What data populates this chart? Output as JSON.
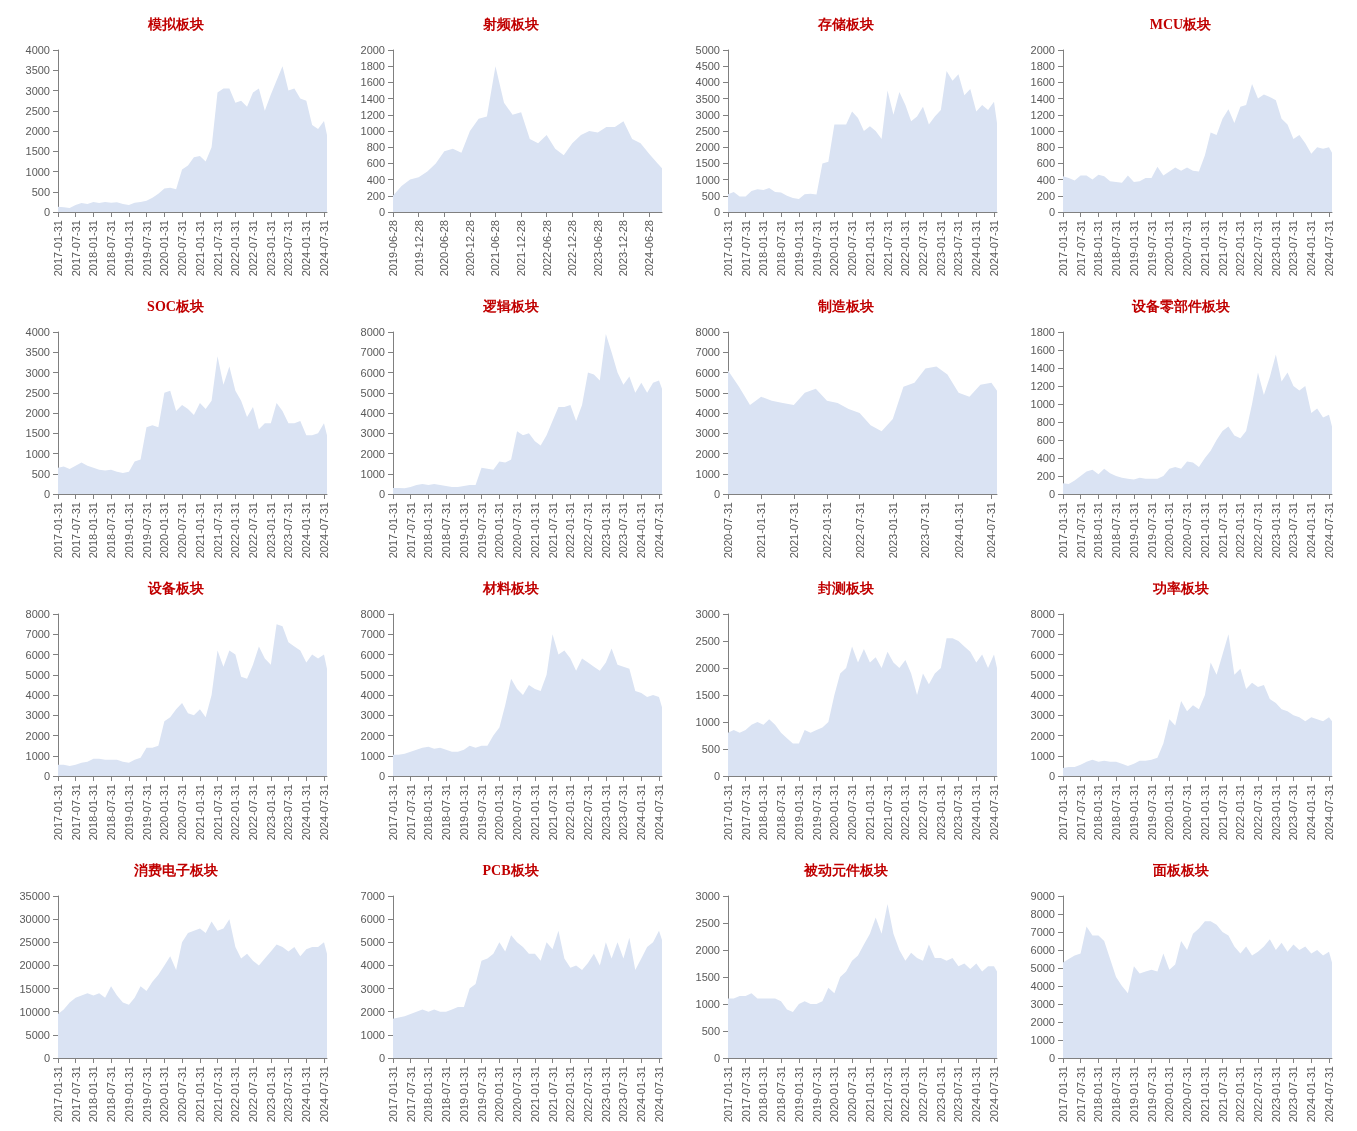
{
  "chart_data": [
    {
      "type": "area",
      "title": "模拟板块",
      "color": "#dae3f3",
      "xlim": [
        "2017-01-31",
        "2024-08-31"
      ],
      "xticks": [
        "2017-01-31",
        "2017-07-31",
        "2018-01-31",
        "2018-07-31",
        "2019-01-31",
        "2019-07-31",
        "2020-01-31",
        "2020-07-31",
        "2021-01-31",
        "2021-07-31",
        "2022-01-31",
        "2022-07-31",
        "2023-01-31",
        "2023-07-31",
        "2024-01-31",
        "2024-07-31"
      ],
      "ylim": [
        0,
        4000
      ],
      "yticks": [
        0,
        500,
        1000,
        1500,
        2000,
        2500,
        3000,
        3500,
        4000
      ],
      "x": [
        "2017-01-31",
        "2017-03-31",
        "2017-05-31",
        "2017-07-31",
        "2017-09-30",
        "2017-11-30",
        "2018-01-31",
        "2018-03-31",
        "2018-05-31",
        "2018-07-31",
        "2018-09-30",
        "2018-11-30",
        "2019-01-31",
        "2019-03-31",
        "2019-05-31",
        "2019-07-31",
        "2019-09-30",
        "2019-11-30",
        "2020-01-31",
        "2020-03-31",
        "2020-05-31",
        "2020-07-31",
        "2020-09-30",
        "2020-11-30",
        "2021-01-31",
        "2021-03-31",
        "2021-05-31",
        "2021-07-31",
        "2021-09-30",
        "2021-11-30",
        "2022-01-31",
        "2022-03-31",
        "2022-05-31",
        "2022-07-31",
        "2022-09-30",
        "2022-11-30",
        "2023-01-31",
        "2023-03-31",
        "2023-05-31",
        "2023-07-31",
        "2023-09-30",
        "2023-11-30",
        "2024-01-31",
        "2024-03-31",
        "2024-05-31",
        "2024-07-31",
        "2024-08-31"
      ],
      "values": [
        130,
        120,
        100,
        170,
        220,
        200,
        250,
        220,
        250,
        230,
        240,
        200,
        170,
        230,
        250,
        280,
        350,
        450,
        580,
        600,
        560,
        1050,
        1150,
        1350,
        1380,
        1250,
        1600,
        2950,
        3050,
        3050,
        2700,
        2750,
        2600,
        2950,
        3050,
        2500,
        2900,
        3250,
        3600,
        3000,
        3050,
        2800,
        2750,
        2150,
        2050,
        2250,
        1900
      ]
    },
    {
      "type": "area",
      "title": "射频板块",
      "color": "#dae3f3",
      "xlim": [
        "2019-06-28",
        "2024-09-28"
      ],
      "xticks": [
        "2019-06-28",
        "2019-12-28",
        "2020-06-28",
        "2020-12-28",
        "2021-06-28",
        "2021-12-28",
        "2022-06-28",
        "2022-12-28",
        "2023-06-28",
        "2023-12-28",
        "2024-06-28"
      ],
      "ylim": [
        0,
        2000
      ],
      "yticks": [
        0,
        200,
        400,
        600,
        800,
        1000,
        1200,
        1400,
        1600,
        1800,
        2000
      ],
      "x": [
        "2019-06-28",
        "2019-08-28",
        "2019-10-28",
        "2019-12-28",
        "2020-02-28",
        "2020-04-28",
        "2020-06-28",
        "2020-08-28",
        "2020-10-28",
        "2020-12-28",
        "2021-02-28",
        "2021-04-28",
        "2021-06-28",
        "2021-08-28",
        "2021-10-28",
        "2021-12-28",
        "2022-02-28",
        "2022-04-28",
        "2022-06-28",
        "2022-08-28",
        "2022-10-28",
        "2022-12-28",
        "2023-02-28",
        "2023-04-28",
        "2023-06-28",
        "2023-08-28",
        "2023-10-28",
        "2023-12-28",
        "2024-02-28",
        "2024-04-28",
        "2024-06-28",
        "2024-08-28",
        "2024-09-28"
      ],
      "values": [
        200,
        320,
        400,
        430,
        500,
        600,
        750,
        780,
        730,
        1000,
        1150,
        1180,
        1800,
        1350,
        1200,
        1230,
        900,
        850,
        950,
        780,
        700,
        850,
        950,
        1000,
        980,
        1050,
        1050,
        1120,
        900,
        850,
        720,
        600,
        540
      ]
    },
    {
      "type": "area",
      "title": "存储板块",
      "color": "#dae3f3",
      "xlim": [
        "2017-01-31",
        "2024-08-31"
      ],
      "xticks": [
        "2017-01-31",
        "2017-07-31",
        "2018-01-31",
        "2018-07-31",
        "2019-01-31",
        "2019-07-31",
        "2020-01-31",
        "2020-07-31",
        "2021-01-31",
        "2021-07-31",
        "2022-01-31",
        "2022-07-31",
        "2023-01-31",
        "2023-07-31",
        "2024-01-31",
        "2024-07-31"
      ],
      "ylim": [
        0,
        5000
      ],
      "yticks": [
        0,
        500,
        1000,
        1500,
        2000,
        2500,
        3000,
        3500,
        4000,
        4500,
        5000
      ],
      "x": [
        "2017-01-31",
        "2017-03-31",
        "2017-05-31",
        "2017-07-31",
        "2017-09-30",
        "2017-11-30",
        "2018-01-31",
        "2018-03-31",
        "2018-05-31",
        "2018-07-31",
        "2018-09-30",
        "2018-11-30",
        "2019-01-31",
        "2019-03-31",
        "2019-05-31",
        "2019-07-31",
        "2019-09-30",
        "2019-11-30",
        "2020-01-31",
        "2020-03-31",
        "2020-05-31",
        "2020-07-31",
        "2020-09-30",
        "2020-11-30",
        "2021-01-31",
        "2021-03-31",
        "2021-05-31",
        "2021-07-31",
        "2021-09-30",
        "2021-11-30",
        "2022-01-31",
        "2022-03-31",
        "2022-05-31",
        "2022-07-31",
        "2022-09-30",
        "2022-11-30",
        "2023-01-31",
        "2023-03-31",
        "2023-05-31",
        "2023-07-31",
        "2023-09-30",
        "2023-11-30",
        "2024-01-31",
        "2024-03-31",
        "2024-05-31",
        "2024-07-31",
        "2024-08-31"
      ],
      "values": [
        550,
        620,
        480,
        480,
        650,
        700,
        680,
        740,
        620,
        600,
        500,
        430,
        400,
        550,
        560,
        540,
        1500,
        1550,
        2700,
        2700,
        2700,
        3100,
        2900,
        2500,
        2650,
        2500,
        2250,
        3750,
        3000,
        3700,
        3300,
        2800,
        2950,
        3250,
        2700,
        2950,
        3150,
        4350,
        4050,
        4250,
        3600,
        3800,
        3100,
        3300,
        3150,
        3400,
        2750
      ]
    },
    {
      "type": "area",
      "title": "MCU板块",
      "color": "#dae3f3",
      "xlim": [
        "2017-01-31",
        "2024-08-31"
      ],
      "xticks": [
        "2017-01-31",
        "2017-07-31",
        "2018-01-31",
        "2018-07-31",
        "2019-01-31",
        "2019-07-31",
        "2020-01-31",
        "2020-07-31",
        "2021-01-31",
        "2021-07-31",
        "2022-01-31",
        "2022-07-31",
        "2023-01-31",
        "2023-07-31",
        "2024-01-31",
        "2024-07-31"
      ],
      "ylim": [
        0,
        2000
      ],
      "yticks": [
        0,
        200,
        400,
        600,
        800,
        1000,
        1200,
        1400,
        1600,
        1800,
        2000
      ],
      "x": [
        "2017-01-31",
        "2017-03-31",
        "2017-05-31",
        "2017-07-31",
        "2017-09-30",
        "2017-11-30",
        "2018-01-31",
        "2018-03-31",
        "2018-05-31",
        "2018-07-31",
        "2018-09-30",
        "2018-11-30",
        "2019-01-31",
        "2019-03-31",
        "2019-05-31",
        "2019-07-31",
        "2019-09-30",
        "2019-11-30",
        "2020-01-31",
        "2020-03-31",
        "2020-05-31",
        "2020-07-31",
        "2020-09-30",
        "2020-11-30",
        "2021-01-31",
        "2021-03-31",
        "2021-05-31",
        "2021-07-31",
        "2021-09-30",
        "2021-11-30",
        "2022-01-31",
        "2022-03-31",
        "2022-05-31",
        "2022-07-31",
        "2022-09-30",
        "2022-11-30",
        "2023-01-31",
        "2023-03-31",
        "2023-05-31",
        "2023-07-31",
        "2023-09-30",
        "2023-11-30",
        "2024-01-31",
        "2024-03-31",
        "2024-05-31",
        "2024-07-31",
        "2024-08-31"
      ],
      "values": [
        440,
        420,
        390,
        450,
        450,
        400,
        460,
        440,
        380,
        370,
        360,
        450,
        370,
        380,
        420,
        420,
        560,
        450,
        500,
        550,
        510,
        550,
        510,
        500,
        700,
        980,
        950,
        1150,
        1270,
        1100,
        1300,
        1320,
        1580,
        1400,
        1450,
        1420,
        1380,
        1150,
        1080,
        900,
        950,
        850,
        720,
        800,
        780,
        800,
        730
      ]
    },
    {
      "type": "area",
      "title": "SOC板块",
      "color": "#dae3f3",
      "xlim": [
        "2017-01-31",
        "2024-08-31"
      ],
      "xticks": [
        "2017-01-31",
        "2017-07-31",
        "2018-01-31",
        "2018-07-31",
        "2019-01-31",
        "2019-07-31",
        "2020-01-31",
        "2020-07-31",
        "2021-01-31",
        "2021-07-31",
        "2022-01-31",
        "2022-07-31",
        "2023-01-31",
        "2023-07-31",
        "2024-01-31",
        "2024-07-31"
      ],
      "ylim": [
        0,
        4000
      ],
      "yticks": [
        0,
        500,
        1000,
        1500,
        2000,
        2500,
        3000,
        3500,
        4000
      ],
      "x": [
        "2017-01-31",
        "2017-03-31",
        "2017-05-31",
        "2017-07-31",
        "2017-09-30",
        "2017-11-30",
        "2018-01-31",
        "2018-03-31",
        "2018-05-31",
        "2018-07-31",
        "2018-09-30",
        "2018-11-30",
        "2019-01-31",
        "2019-03-31",
        "2019-05-31",
        "2019-07-31",
        "2019-09-30",
        "2019-11-30",
        "2020-01-31",
        "2020-03-31",
        "2020-05-31",
        "2020-07-31",
        "2020-09-30",
        "2020-11-30",
        "2021-01-31",
        "2021-03-31",
        "2021-05-31",
        "2021-07-31",
        "2021-09-30",
        "2021-11-30",
        "2022-01-31",
        "2022-03-31",
        "2022-05-31",
        "2022-07-31",
        "2022-09-30",
        "2022-11-30",
        "2023-01-31",
        "2023-03-31",
        "2023-05-31",
        "2023-07-31",
        "2023-09-30",
        "2023-11-30",
        "2024-01-31",
        "2024-03-31",
        "2024-05-31",
        "2024-07-31",
        "2024-08-31"
      ],
      "values": [
        650,
        680,
        620,
        700,
        780,
        700,
        650,
        600,
        580,
        600,
        550,
        520,
        550,
        800,
        850,
        1650,
        1700,
        1650,
        2500,
        2550,
        2050,
        2200,
        2100,
        1950,
        2250,
        2100,
        2300,
        3400,
        2700,
        3150,
        2550,
        2300,
        1900,
        2150,
        1600,
        1750,
        1750,
        2250,
        2050,
        1750,
        1750,
        1800,
        1450,
        1450,
        1500,
        1750,
        1450
      ]
    },
    {
      "type": "area",
      "title": "逻辑板块",
      "color": "#dae3f3",
      "xlim": [
        "2017-01-31",
        "2024-08-31"
      ],
      "xticks": [
        "2017-01-31",
        "2017-07-31",
        "2018-01-31",
        "2018-07-31",
        "2019-01-31",
        "2019-07-31",
        "2020-01-31",
        "2020-07-31",
        "2021-01-31",
        "2021-07-31",
        "2022-01-31",
        "2022-07-31",
        "2023-01-31",
        "2023-07-31",
        "2024-01-31",
        "2024-07-31"
      ],
      "ylim": [
        0,
        8000
      ],
      "yticks": [
        0,
        1000,
        2000,
        3000,
        4000,
        5000,
        6000,
        7000,
        8000
      ],
      "x": [
        "2017-01-31",
        "2017-03-31",
        "2017-05-31",
        "2017-07-31",
        "2017-09-30",
        "2017-11-30",
        "2018-01-31",
        "2018-03-31",
        "2018-05-31",
        "2018-07-31",
        "2018-09-30",
        "2018-11-30",
        "2019-01-31",
        "2019-03-31",
        "2019-05-31",
        "2019-07-31",
        "2019-09-30",
        "2019-11-30",
        "2020-01-31",
        "2020-03-31",
        "2020-05-31",
        "2020-07-31",
        "2020-09-30",
        "2020-11-30",
        "2021-01-31",
        "2021-03-31",
        "2021-05-31",
        "2021-07-31",
        "2021-09-30",
        "2021-11-30",
        "2022-01-31",
        "2022-03-31",
        "2022-05-31",
        "2022-07-31",
        "2022-09-30",
        "2022-11-30",
        "2023-01-31",
        "2023-03-31",
        "2023-05-31",
        "2023-07-31",
        "2023-09-30",
        "2023-11-30",
        "2024-01-31",
        "2024-03-31",
        "2024-05-31",
        "2024-07-31",
        "2024-08-31"
      ],
      "values": [
        300,
        300,
        280,
        350,
        450,
        500,
        450,
        500,
        450,
        400,
        350,
        350,
        400,
        450,
        450,
        1300,
        1250,
        1200,
        1600,
        1550,
        1700,
        3100,
        2900,
        3000,
        2600,
        2400,
        2900,
        3600,
        4300,
        4300,
        4400,
        3600,
        4400,
        6000,
        5900,
        5600,
        7900,
        7000,
        6000,
        5400,
        5800,
        5000,
        5500,
        5000,
        5500,
        5600,
        5200
      ]
    },
    {
      "type": "area",
      "title": "制造板块",
      "color": "#dae3f3",
      "xlim": [
        "2020-07-31",
        "2024-08-31"
      ],
      "xticks": [
        "2020-07-31",
        "2021-01-31",
        "2021-07-31",
        "2022-01-31",
        "2022-07-31",
        "2023-01-31",
        "2023-07-31",
        "2024-01-31",
        "2024-07-31"
      ],
      "ylim": [
        0,
        8000
      ],
      "yticks": [
        0,
        1000,
        2000,
        3000,
        4000,
        5000,
        6000,
        7000,
        8000
      ],
      "x": [
        "2020-07-31",
        "2020-09-30",
        "2020-11-30",
        "2021-01-31",
        "2021-03-31",
        "2021-05-31",
        "2021-07-31",
        "2021-09-30",
        "2021-11-30",
        "2022-01-31",
        "2022-03-31",
        "2022-05-31",
        "2022-07-31",
        "2022-09-30",
        "2022-11-30",
        "2023-01-31",
        "2023-03-31",
        "2023-05-31",
        "2023-07-31",
        "2023-09-30",
        "2023-11-30",
        "2024-01-31",
        "2024-03-31",
        "2024-05-31",
        "2024-07-31",
        "2024-08-31"
      ],
      "values": [
        6100,
        5300,
        4400,
        4800,
        4600,
        4500,
        4400,
        5000,
        5200,
        4600,
        4500,
        4200,
        4000,
        3400,
        3100,
        3700,
        5300,
        5500,
        6200,
        6300,
        5900,
        5000,
        4800,
        5400,
        5500,
        5100
      ]
    },
    {
      "type": "area",
      "title": "设备零部件板块",
      "color": "#dae3f3",
      "xlim": [
        "2017-01-31",
        "2024-08-31"
      ],
      "xticks": [
        "2017-01-31",
        "2017-07-31",
        "2018-01-31",
        "2018-07-31",
        "2019-01-31",
        "2019-07-31",
        "2020-01-31",
        "2020-07-31",
        "2021-01-31",
        "2021-07-31",
        "2022-01-31",
        "2022-07-31",
        "2023-01-31",
        "2023-07-31",
        "2024-01-31",
        "2024-07-31"
      ],
      "ylim": [
        0,
        1800
      ],
      "yticks": [
        0,
        200,
        400,
        600,
        800,
        1000,
        1200,
        1400,
        1600,
        1800
      ],
      "x": [
        "2017-01-31",
        "2017-03-31",
        "2017-05-31",
        "2017-07-31",
        "2017-09-30",
        "2017-11-30",
        "2018-01-31",
        "2018-03-31",
        "2018-05-31",
        "2018-07-31",
        "2018-09-30",
        "2018-11-30",
        "2019-01-31",
        "2019-03-31",
        "2019-05-31",
        "2019-07-31",
        "2019-09-30",
        "2019-11-30",
        "2020-01-31",
        "2020-03-31",
        "2020-05-31",
        "2020-07-31",
        "2020-09-30",
        "2020-11-30",
        "2021-01-31",
        "2021-03-31",
        "2021-05-31",
        "2021-07-31",
        "2021-09-30",
        "2021-11-30",
        "2022-01-31",
        "2022-03-31",
        "2022-05-31",
        "2022-07-31",
        "2022-09-30",
        "2022-11-30",
        "2023-01-31",
        "2023-03-31",
        "2023-05-31",
        "2023-07-31",
        "2023-09-30",
        "2023-11-30",
        "2024-01-31",
        "2024-03-31",
        "2024-05-31",
        "2024-07-31",
        "2024-08-31"
      ],
      "values": [
        120,
        110,
        150,
        200,
        250,
        270,
        220,
        280,
        230,
        200,
        180,
        170,
        160,
        180,
        170,
        170,
        170,
        200,
        280,
        300,
        280,
        360,
        350,
        300,
        400,
        480,
        600,
        700,
        750,
        650,
        620,
        700,
        1000,
        1350,
        1100,
        1300,
        1550,
        1250,
        1350,
        1200,
        1150,
        1200,
        900,
        950,
        850,
        880,
        750
      ]
    },
    {
      "type": "area",
      "title": "设备板块",
      "color": "#dae3f3",
      "xlim": [
        "2017-01-31",
        "2024-08-31"
      ],
      "xticks": [
        "2017-01-31",
        "2017-07-31",
        "2018-01-31",
        "2018-07-31",
        "2019-01-31",
        "2019-07-31",
        "2020-01-31",
        "2020-07-31",
        "2021-01-31",
        "2021-07-31",
        "2022-01-31",
        "2022-07-31",
        "2023-01-31",
        "2023-07-31",
        "2024-01-31",
        "2024-07-31"
      ],
      "ylim": [
        0,
        8000
      ],
      "yticks": [
        0,
        1000,
        2000,
        3000,
        4000,
        5000,
        6000,
        7000,
        8000
      ],
      "x": [
        "2017-01-31",
        "2017-03-31",
        "2017-05-31",
        "2017-07-31",
        "2017-09-30",
        "2017-11-30",
        "2018-01-31",
        "2018-03-31",
        "2018-05-31",
        "2018-07-31",
        "2018-09-30",
        "2018-11-30",
        "2019-01-31",
        "2019-03-31",
        "2019-05-31",
        "2019-07-31",
        "2019-09-30",
        "2019-11-30",
        "2020-01-31",
        "2020-03-31",
        "2020-05-31",
        "2020-07-31",
        "2020-09-30",
        "2020-11-30",
        "2021-01-31",
        "2021-03-31",
        "2021-05-31",
        "2021-07-31",
        "2021-09-30",
        "2021-11-30",
        "2022-01-31",
        "2022-03-31",
        "2022-05-31",
        "2022-07-31",
        "2022-09-30",
        "2022-11-30",
        "2023-01-31",
        "2023-03-31",
        "2023-05-31",
        "2023-07-31",
        "2023-09-30",
        "2023-11-30",
        "2024-01-31",
        "2024-03-31",
        "2024-05-31",
        "2024-07-31",
        "2024-08-31"
      ],
      "values": [
        550,
        550,
        500,
        550,
        650,
        700,
        850,
        850,
        800,
        800,
        800,
        700,
        650,
        800,
        900,
        1400,
        1400,
        1500,
        2700,
        2900,
        3300,
        3600,
        3100,
        3000,
        3300,
        2900,
        4000,
        6200,
        5400,
        6200,
        6000,
        4900,
        4800,
        5500,
        6400,
        5800,
        5500,
        7500,
        7400,
        6600,
        6400,
        6200,
        5600,
        6000,
        5800,
        6000,
        5300
      ]
    },
    {
      "type": "area",
      "title": "材料板块",
      "color": "#dae3f3",
      "xlim": [
        "2017-01-31",
        "2024-08-31"
      ],
      "xticks": [
        "2017-01-31",
        "2017-07-31",
        "2018-01-31",
        "2018-07-31",
        "2019-01-31",
        "2019-07-31",
        "2020-01-31",
        "2020-07-31",
        "2021-01-31",
        "2021-07-31",
        "2022-01-31",
        "2022-07-31",
        "2023-01-31",
        "2023-07-31",
        "2024-01-31",
        "2024-07-31"
      ],
      "ylim": [
        0,
        8000
      ],
      "yticks": [
        0,
        1000,
        2000,
        3000,
        4000,
        5000,
        6000,
        7000,
        8000
      ],
      "x": [
        "2017-01-31",
        "2017-03-31",
        "2017-05-31",
        "2017-07-31",
        "2017-09-30",
        "2017-11-30",
        "2018-01-31",
        "2018-03-31",
        "2018-05-31",
        "2018-07-31",
        "2018-09-30",
        "2018-11-30",
        "2019-01-31",
        "2019-03-31",
        "2019-05-31",
        "2019-07-31",
        "2019-09-30",
        "2019-11-30",
        "2020-01-31",
        "2020-03-31",
        "2020-05-31",
        "2020-07-31",
        "2020-09-30",
        "2020-11-30",
        "2021-01-31",
        "2021-03-31",
        "2021-05-31",
        "2021-07-31",
        "2021-09-30",
        "2021-11-30",
        "2022-01-31",
        "2022-03-31",
        "2022-05-31",
        "2022-07-31",
        "2022-09-30",
        "2022-11-30",
        "2023-01-31",
        "2023-03-31",
        "2023-05-31",
        "2023-07-31",
        "2023-09-30",
        "2023-11-30",
        "2024-01-31",
        "2024-03-31",
        "2024-05-31",
        "2024-07-31",
        "2024-08-31"
      ],
      "values": [
        1050,
        1050,
        1100,
        1200,
        1300,
        1400,
        1450,
        1350,
        1400,
        1300,
        1200,
        1200,
        1300,
        1500,
        1400,
        1500,
        1500,
        2000,
        2400,
        3500,
        4800,
        4300,
        4000,
        4500,
        4300,
        4200,
        5000,
        7000,
        6000,
        6200,
        5800,
        5200,
        5800,
        5600,
        5400,
        5200,
        5600,
        6300,
        5500,
        5400,
        5300,
        4200,
        4100,
        3900,
        4000,
        3900,
        3400
      ]
    },
    {
      "type": "area",
      "title": "封测板块",
      "color": "#dae3f3",
      "xlim": [
        "2017-01-31",
        "2024-08-31"
      ],
      "xticks": [
        "2017-01-31",
        "2017-07-31",
        "2018-01-31",
        "2018-07-31",
        "2019-01-31",
        "2019-07-31",
        "2020-01-31",
        "2020-07-31",
        "2021-01-31",
        "2021-07-31",
        "2022-01-31",
        "2022-07-31",
        "2023-01-31",
        "2023-07-31",
        "2024-01-31",
        "2024-07-31"
      ],
      "ylim": [
        0,
        3000
      ],
      "yticks": [
        0,
        500,
        1000,
        1500,
        2000,
        2500,
        3000
      ],
      "x": [
        "2017-01-31",
        "2017-03-31",
        "2017-05-31",
        "2017-07-31",
        "2017-09-30",
        "2017-11-30",
        "2018-01-31",
        "2018-03-31",
        "2018-05-31",
        "2018-07-31",
        "2018-09-30",
        "2018-11-30",
        "2019-01-31",
        "2019-03-31",
        "2019-05-31",
        "2019-07-31",
        "2019-09-30",
        "2019-11-30",
        "2020-01-31",
        "2020-03-31",
        "2020-05-31",
        "2020-07-31",
        "2020-09-30",
        "2020-11-30",
        "2021-01-31",
        "2021-03-31",
        "2021-05-31",
        "2021-07-31",
        "2021-09-30",
        "2021-11-30",
        "2022-01-31",
        "2022-03-31",
        "2022-05-31",
        "2022-07-31",
        "2022-09-30",
        "2022-11-30",
        "2023-01-31",
        "2023-03-31",
        "2023-05-31",
        "2023-07-31",
        "2023-09-30",
        "2023-11-30",
        "2024-01-31",
        "2024-03-31",
        "2024-05-31",
        "2024-07-31",
        "2024-08-31"
      ],
      "values": [
        800,
        850,
        800,
        850,
        950,
        1000,
        950,
        1050,
        950,
        800,
        700,
        600,
        600,
        850,
        800,
        850,
        900,
        1000,
        1500,
        1900,
        2000,
        2400,
        2100,
        2350,
        2100,
        2200,
        2000,
        2300,
        2100,
        2000,
        2150,
        1900,
        1500,
        1900,
        1700,
        1900,
        2000,
        2550,
        2550,
        2500,
        2400,
        2300,
        2100,
        2250,
        2000,
        2250,
        2000
      ]
    },
    {
      "type": "area",
      "title": "功率板块",
      "color": "#dae3f3",
      "xlim": [
        "2017-01-31",
        "2024-08-31"
      ],
      "xticks": [
        "2017-01-31",
        "2017-07-31",
        "2018-01-31",
        "2018-07-31",
        "2019-01-31",
        "2019-07-31",
        "2020-01-31",
        "2020-07-31",
        "2021-01-31",
        "2021-07-31",
        "2022-01-31",
        "2022-07-31",
        "2023-01-31",
        "2023-07-31",
        "2024-01-31",
        "2024-07-31"
      ],
      "ylim": [
        0,
        8000
      ],
      "yticks": [
        0,
        1000,
        2000,
        3000,
        4000,
        5000,
        6000,
        7000,
        8000
      ],
      "x": [
        "2017-01-31",
        "2017-03-31",
        "2017-05-31",
        "2017-07-31",
        "2017-09-30",
        "2017-11-30",
        "2018-01-31",
        "2018-03-31",
        "2018-05-31",
        "2018-07-31",
        "2018-09-30",
        "2018-11-30",
        "2019-01-31",
        "2019-03-31",
        "2019-05-31",
        "2019-07-31",
        "2019-09-30",
        "2019-11-30",
        "2020-01-31",
        "2020-03-31",
        "2020-05-31",
        "2020-07-31",
        "2020-09-30",
        "2020-11-30",
        "2021-01-31",
        "2021-03-31",
        "2021-05-31",
        "2021-07-31",
        "2021-09-30",
        "2021-11-30",
        "2022-01-31",
        "2022-03-31",
        "2022-05-31",
        "2022-07-31",
        "2022-09-30",
        "2022-11-30",
        "2023-01-31",
        "2023-03-31",
        "2023-05-31",
        "2023-07-31",
        "2023-09-30",
        "2023-11-30",
        "2024-01-31",
        "2024-03-31",
        "2024-05-31",
        "2024-07-31",
        "2024-08-31"
      ],
      "values": [
        400,
        450,
        450,
        550,
        700,
        800,
        700,
        750,
        700,
        700,
        600,
        500,
        600,
        750,
        750,
        800,
        900,
        1600,
        2800,
        2500,
        3700,
        3200,
        3500,
        3300,
        4000,
        5600,
        5000,
        6000,
        7000,
        5000,
        5300,
        4300,
        4600,
        4400,
        4500,
        3800,
        3600,
        3300,
        3200,
        3000,
        2900,
        2700,
        2900,
        2800,
        2700,
        2900,
        2700
      ]
    },
    {
      "type": "area",
      "title": "消费电子板块",
      "color": "#dae3f3",
      "xlim": [
        "2017-01-31",
        "2024-08-31"
      ],
      "xticks": [
        "2017-01-31",
        "2017-07-31",
        "2018-01-31",
        "2018-07-31",
        "2019-01-31",
        "2019-07-31",
        "2020-01-31",
        "2020-07-31",
        "2021-01-31",
        "2021-07-31",
        "2022-01-31",
        "2022-07-31",
        "2023-01-31",
        "2023-07-31",
        "2024-01-31",
        "2024-07-31"
      ],
      "ylim": [
        0,
        35000
      ],
      "yticks": [
        0,
        5000,
        10000,
        15000,
        20000,
        25000,
        30000,
        35000
      ],
      "x": [
        "2017-01-31",
        "2017-03-31",
        "2017-05-31",
        "2017-07-31",
        "2017-09-30",
        "2017-11-30",
        "2018-01-31",
        "2018-03-31",
        "2018-05-31",
        "2018-07-31",
        "2018-09-30",
        "2018-11-30",
        "2019-01-31",
        "2019-03-31",
        "2019-05-31",
        "2019-07-31",
        "2019-09-30",
        "2019-11-30",
        "2020-01-31",
        "2020-03-31",
        "2020-05-31",
        "2020-07-31",
        "2020-09-30",
        "2020-11-30",
        "2021-01-31",
        "2021-03-31",
        "2021-05-31",
        "2021-07-31",
        "2021-09-30",
        "2021-11-30",
        "2022-01-31",
        "2022-03-31",
        "2022-05-31",
        "2022-07-31",
        "2022-09-30",
        "2022-11-30",
        "2023-01-31",
        "2023-03-31",
        "2023-05-31",
        "2023-07-31",
        "2023-09-30",
        "2023-11-30",
        "2024-01-31",
        "2024-03-31",
        "2024-05-31",
        "2024-07-31",
        "2024-08-31"
      ],
      "values": [
        9500,
        10500,
        12000,
        13000,
        13500,
        14000,
        13500,
        14000,
        13000,
        15500,
        13500,
        12000,
        11500,
        13000,
        15500,
        14500,
        16500,
        18000,
        20000,
        22000,
        19000,
        25000,
        27000,
        27500,
        28000,
        27000,
        29500,
        27500,
        28000,
        30000,
        24000,
        21500,
        22500,
        21000,
        20000,
        21500,
        23000,
        24500,
        24000,
        23000,
        24000,
        22000,
        23500,
        24000,
        24000,
        25000,
        22500
      ]
    },
    {
      "type": "area",
      "title": "PCB板块",
      "color": "#dae3f3",
      "xlim": [
        "2017-01-31",
        "2024-08-31"
      ],
      "xticks": [
        "2017-01-31",
        "2017-07-31",
        "2018-01-31",
        "2018-07-31",
        "2019-01-31",
        "2019-07-31",
        "2020-01-31",
        "2020-07-31",
        "2021-01-31",
        "2021-07-31",
        "2022-01-31",
        "2022-07-31",
        "2023-01-31",
        "2023-07-31",
        "2024-01-31",
        "2024-07-31"
      ],
      "ylim": [
        0,
        7000
      ],
      "yticks": [
        0,
        1000,
        2000,
        3000,
        4000,
        5000,
        6000,
        7000
      ],
      "x": [
        "2017-01-31",
        "2017-03-31",
        "2017-05-31",
        "2017-07-31",
        "2017-09-30",
        "2017-11-30",
        "2018-01-31",
        "2018-03-31",
        "2018-05-31",
        "2018-07-31",
        "2018-09-30",
        "2018-11-30",
        "2019-01-31",
        "2019-03-31",
        "2019-05-31",
        "2019-07-31",
        "2019-09-30",
        "2019-11-30",
        "2020-01-31",
        "2020-03-31",
        "2020-05-31",
        "2020-07-31",
        "2020-09-30",
        "2020-11-30",
        "2021-01-31",
        "2021-03-31",
        "2021-05-31",
        "2021-07-31",
        "2021-09-30",
        "2021-11-30",
        "2022-01-31",
        "2022-03-31",
        "2022-05-31",
        "2022-07-31",
        "2022-09-30",
        "2022-11-30",
        "2023-01-31",
        "2023-03-31",
        "2023-05-31",
        "2023-07-31",
        "2023-09-30",
        "2023-11-30",
        "2024-01-31",
        "2024-03-31",
        "2024-05-31",
        "2024-07-31",
        "2024-08-31"
      ],
      "values": [
        1700,
        1750,
        1800,
        1900,
        2000,
        2100,
        2000,
        2100,
        2000,
        2000,
        2100,
        2200,
        2200,
        3000,
        3200,
        4200,
        4300,
        4500,
        5000,
        4600,
        5300,
        5000,
        4800,
        4500,
        4500,
        4200,
        5000,
        4700,
        5500,
        4300,
        3900,
        4000,
        3800,
        4100,
        4500,
        4000,
        5000,
        4300,
        5000,
        4300,
        5200,
        3800,
        4300,
        4800,
        5000,
        5500,
        5100
      ]
    },
    {
      "type": "area",
      "title": "被动元件板块",
      "color": "#dae3f3",
      "xlim": [
        "2017-01-31",
        "2024-08-31"
      ],
      "xticks": [
        "2017-01-31",
        "2017-07-31",
        "2018-01-31",
        "2018-07-31",
        "2019-01-31",
        "2019-07-31",
        "2020-01-31",
        "2020-07-31",
        "2021-01-31",
        "2021-07-31",
        "2022-01-31",
        "2022-07-31",
        "2023-01-31",
        "2023-07-31",
        "2024-01-31",
        "2024-07-31"
      ],
      "ylim": [
        0,
        3000
      ],
      "yticks": [
        0,
        500,
        1000,
        1500,
        2000,
        2500,
        3000
      ],
      "x": [
        "2017-01-31",
        "2017-03-31",
        "2017-05-31",
        "2017-07-31",
        "2017-09-30",
        "2017-11-30",
        "2018-01-31",
        "2018-03-31",
        "2018-05-31",
        "2018-07-31",
        "2018-09-30",
        "2018-11-30",
        "2019-01-31",
        "2019-03-31",
        "2019-05-31",
        "2019-07-31",
        "2019-09-30",
        "2019-11-30",
        "2020-01-31",
        "2020-03-31",
        "2020-05-31",
        "2020-07-31",
        "2020-09-30",
        "2020-11-30",
        "2021-01-31",
        "2021-03-31",
        "2021-05-31",
        "2021-07-31",
        "2021-09-30",
        "2021-11-30",
        "2022-01-31",
        "2022-03-31",
        "2022-05-31",
        "2022-07-31",
        "2022-09-30",
        "2022-11-30",
        "2023-01-31",
        "2023-03-31",
        "2023-05-31",
        "2023-07-31",
        "2023-09-30",
        "2023-11-30",
        "2024-01-31",
        "2024-03-31",
        "2024-05-31",
        "2024-07-31",
        "2024-08-31"
      ],
      "values": [
        1100,
        1100,
        1150,
        1150,
        1200,
        1100,
        1100,
        1100,
        1100,
        1050,
        900,
        850,
        1000,
        1050,
        1000,
        1000,
        1050,
        1300,
        1200,
        1500,
        1600,
        1800,
        1900,
        2100,
        2300,
        2600,
        2300,
        2850,
        2300,
        2000,
        1800,
        1950,
        1850,
        1800,
        2100,
        1850,
        1850,
        1800,
        1850,
        1700,
        1750,
        1650,
        1750,
        1600,
        1700,
        1700,
        1600
      ]
    },
    {
      "type": "area",
      "title": "面板板块",
      "color": "#dae3f3",
      "xlim": [
        "2017-01-31",
        "2024-08-31"
      ],
      "xticks": [
        "2017-01-31",
        "2017-07-31",
        "2018-01-31",
        "2018-07-31",
        "2019-01-31",
        "2019-07-31",
        "2020-01-31",
        "2020-07-31",
        "2021-01-31",
        "2021-07-31",
        "2022-01-31",
        "2022-07-31",
        "2023-01-31",
        "2023-07-31",
        "2024-01-31",
        "2024-07-31"
      ],
      "ylim": [
        0,
        9000
      ],
      "yticks": [
        0,
        1000,
        2000,
        3000,
        4000,
        5000,
        6000,
        7000,
        8000,
        9000
      ],
      "x": [
        "2017-01-31",
        "2017-03-31",
        "2017-05-31",
        "2017-07-31",
        "2017-09-30",
        "2017-11-30",
        "2018-01-31",
        "2018-03-31",
        "2018-05-31",
        "2018-07-31",
        "2018-09-30",
        "2018-11-30",
        "2019-01-31",
        "2019-03-31",
        "2019-05-31",
        "2019-07-31",
        "2019-09-30",
        "2019-11-30",
        "2020-01-31",
        "2020-03-31",
        "2020-05-31",
        "2020-07-31",
        "2020-09-30",
        "2020-11-30",
        "2021-01-31",
        "2021-03-31",
        "2021-05-31",
        "2021-07-31",
        "2021-09-30",
        "2021-11-30",
        "2022-01-31",
        "2022-03-31",
        "2022-05-31",
        "2022-07-31",
        "2022-09-30",
        "2022-11-30",
        "2023-01-31",
        "2023-03-31",
        "2023-05-31",
        "2023-07-31",
        "2023-09-30",
        "2023-11-30",
        "2024-01-31",
        "2024-03-31",
        "2024-05-31",
        "2024-07-31",
        "2024-08-31"
      ],
      "values": [
        5300,
        5500,
        5700,
        5800,
        7300,
        6800,
        6800,
        6500,
        5500,
        4500,
        4000,
        3600,
        5100,
        4700,
        4800,
        4900,
        4800,
        5800,
        4900,
        5200,
        6500,
        6000,
        6900,
        7200,
        7600,
        7600,
        7400,
        7000,
        6800,
        6200,
        5800,
        6200,
        5700,
        5900,
        6200,
        6600,
        6000,
        6400,
        5900,
        6300,
        6000,
        6200,
        5800,
        6000,
        5700,
        5900,
        5300
      ]
    }
  ]
}
